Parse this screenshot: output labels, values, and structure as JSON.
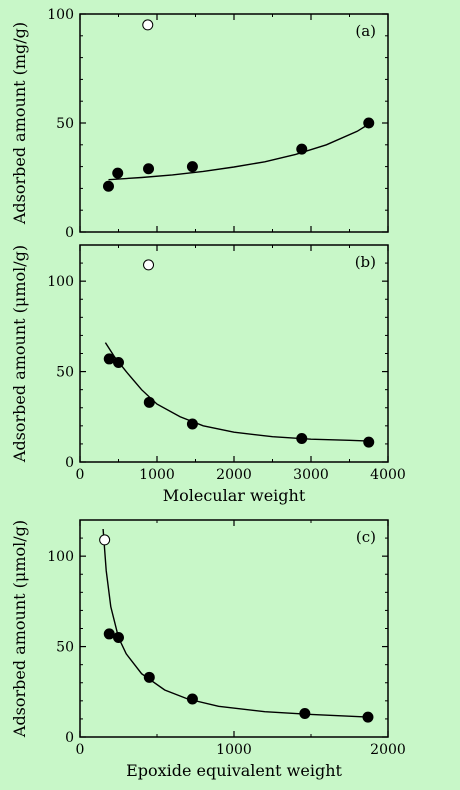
{
  "colors": {
    "background": "#c8f7c8",
    "ink": "#000000",
    "open_marker": "#ffffff"
  },
  "chart_data": [
    {
      "type": "scatter",
      "panel_label": "(a)",
      "xlabel": "",
      "ylabel": "Adsorbed amount (mg/g)",
      "xlim": [
        0,
        4000
      ],
      "ylim": [
        0,
        100
      ],
      "xticks": [
        0,
        1000,
        2000,
        3000,
        4000
      ],
      "xtick_labels": [
        "",
        "",
        "",
        "",
        ""
      ],
      "yticks": [
        0,
        50,
        100
      ],
      "ytick_labels": [
        "0",
        "50",
        "100"
      ],
      "grid": false,
      "series": [
        {
          "marker": "filled",
          "x": [
            370,
            490,
            890,
            1460,
            2880,
            3750
          ],
          "y": [
            21,
            27,
            29,
            30,
            38,
            50
          ]
        },
        {
          "marker": "open",
          "x": [
            880
          ],
          "y": [
            95
          ]
        }
      ],
      "fit_curve": {
        "x": [
          370,
          800,
          1200,
          1600,
          2000,
          2400,
          2800,
          3200,
          3600,
          3750
        ],
        "y": [
          24,
          25,
          26.2,
          27.8,
          29.8,
          32.2,
          35.6,
          40,
          46.2,
          49.5
        ]
      }
    },
    {
      "type": "scatter",
      "panel_label": "(b)",
      "xlabel": "Molecular weight",
      "ylabel": "Adsorbed amount (μmol/g)",
      "xlim": [
        0,
        4000
      ],
      "ylim": [
        0,
        120
      ],
      "xticks": [
        0,
        1000,
        2000,
        3000,
        4000
      ],
      "xtick_labels": [
        "0",
        "1000",
        "2000",
        "3000",
        "4000"
      ],
      "yticks": [
        0,
        50,
        100
      ],
      "ytick_labels": [
        "0",
        "50",
        "100"
      ],
      "grid": false,
      "series": [
        {
          "marker": "filled",
          "x": [
            380,
            500,
            900,
            1460,
            2880,
            3750
          ],
          "y": [
            57,
            55,
            33,
            21,
            13,
            11
          ]
        },
        {
          "marker": "open",
          "x": [
            890
          ],
          "y": [
            109
          ]
        }
      ],
      "fit_curve": {
        "x": [
          330,
          450,
          600,
          800,
          1000,
          1300,
          1600,
          2000,
          2500,
          3000,
          3500,
          3800
        ],
        "y": [
          66,
          58,
          50,
          40,
          32,
          25,
          20,
          16.5,
          14,
          12.6,
          12,
          11.5
        ]
      }
    },
    {
      "type": "scatter",
      "panel_label": "(c)",
      "xlabel": "Epoxide equivalent weight",
      "ylabel": "Adsorbed amount (μmol/g)",
      "xlim": [
        0,
        2000
      ],
      "ylim": [
        0,
        120
      ],
      "xticks": [
        0,
        1000,
        2000
      ],
      "xtick_labels": [
        "0",
        "1000",
        "2000"
      ],
      "yticks": [
        0,
        50,
        100
      ],
      "ytick_labels": [
        "0",
        "50",
        "100"
      ],
      "grid": false,
      "series": [
        {
          "marker": "filled",
          "x": [
            190,
            250,
            450,
            730,
            1460,
            1870
          ],
          "y": [
            57,
            55,
            33,
            21,
            13,
            11
          ]
        },
        {
          "marker": "open",
          "x": [
            160
          ],
          "y": [
            109
          ]
        }
      ],
      "fit_curve": {
        "x": [
          150,
          170,
          200,
          250,
          300,
          400,
          550,
          700,
          900,
          1200,
          1500,
          1870
        ],
        "y": [
          115,
          92,
          72,
          55,
          46,
          35,
          26,
          21,
          17,
          14,
          12.5,
          11
        ]
      }
    }
  ]
}
